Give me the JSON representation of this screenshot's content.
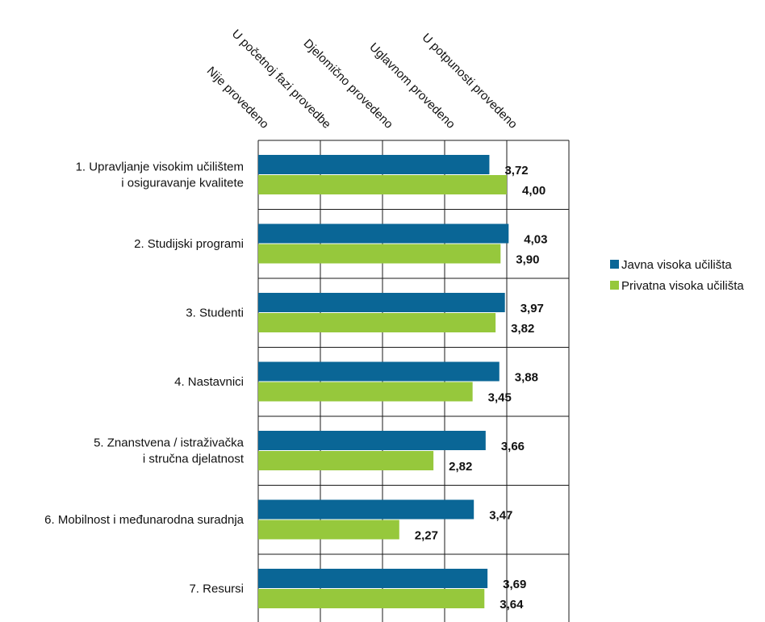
{
  "chart_data": {
    "type": "bar",
    "orientation": "horizontal",
    "x_axis_levels": [
      "Nije provedeno",
      "U početnoj fazi provedbe",
      "Djelomično provedeno",
      "Uglavnom provedeno",
      "U potpunosti provedeno"
    ],
    "xlim": [
      0,
      5
    ],
    "categories": [
      [
        "1. Upravljanje visokim učilištem",
        "i osiguravanje kvalitete"
      ],
      [
        "2. Studijski programi"
      ],
      [
        "3. Studenti"
      ],
      [
        "4. Nastavnici"
      ],
      [
        "5. Znanstvena / istraživačka",
        "i stručna djelatnost"
      ],
      [
        "6. Mobilnost i međunarodna suradnja"
      ],
      [
        "7. Resursi"
      ]
    ],
    "series": [
      {
        "name": "Javna visoka učilišta",
        "color": "#0a6696",
        "values": [
          3.72,
          4.03,
          3.97,
          3.88,
          3.66,
          3.47,
          3.69
        ],
        "labels": [
          "3,72",
          "4,03",
          "3,97",
          "3,88",
          "3,66",
          "3,47",
          "3,69"
        ]
      },
      {
        "name": "Privatna visoka učilišta",
        "color": "#96c83c",
        "values": [
          4.0,
          3.9,
          3.82,
          3.45,
          2.82,
          2.27,
          3.64
        ],
        "labels": [
          "4,00",
          "3,90",
          "3,82",
          "3,45",
          "2,82",
          "2,27",
          "3,64"
        ]
      }
    ],
    "grid": true,
    "legend_position": "right"
  }
}
